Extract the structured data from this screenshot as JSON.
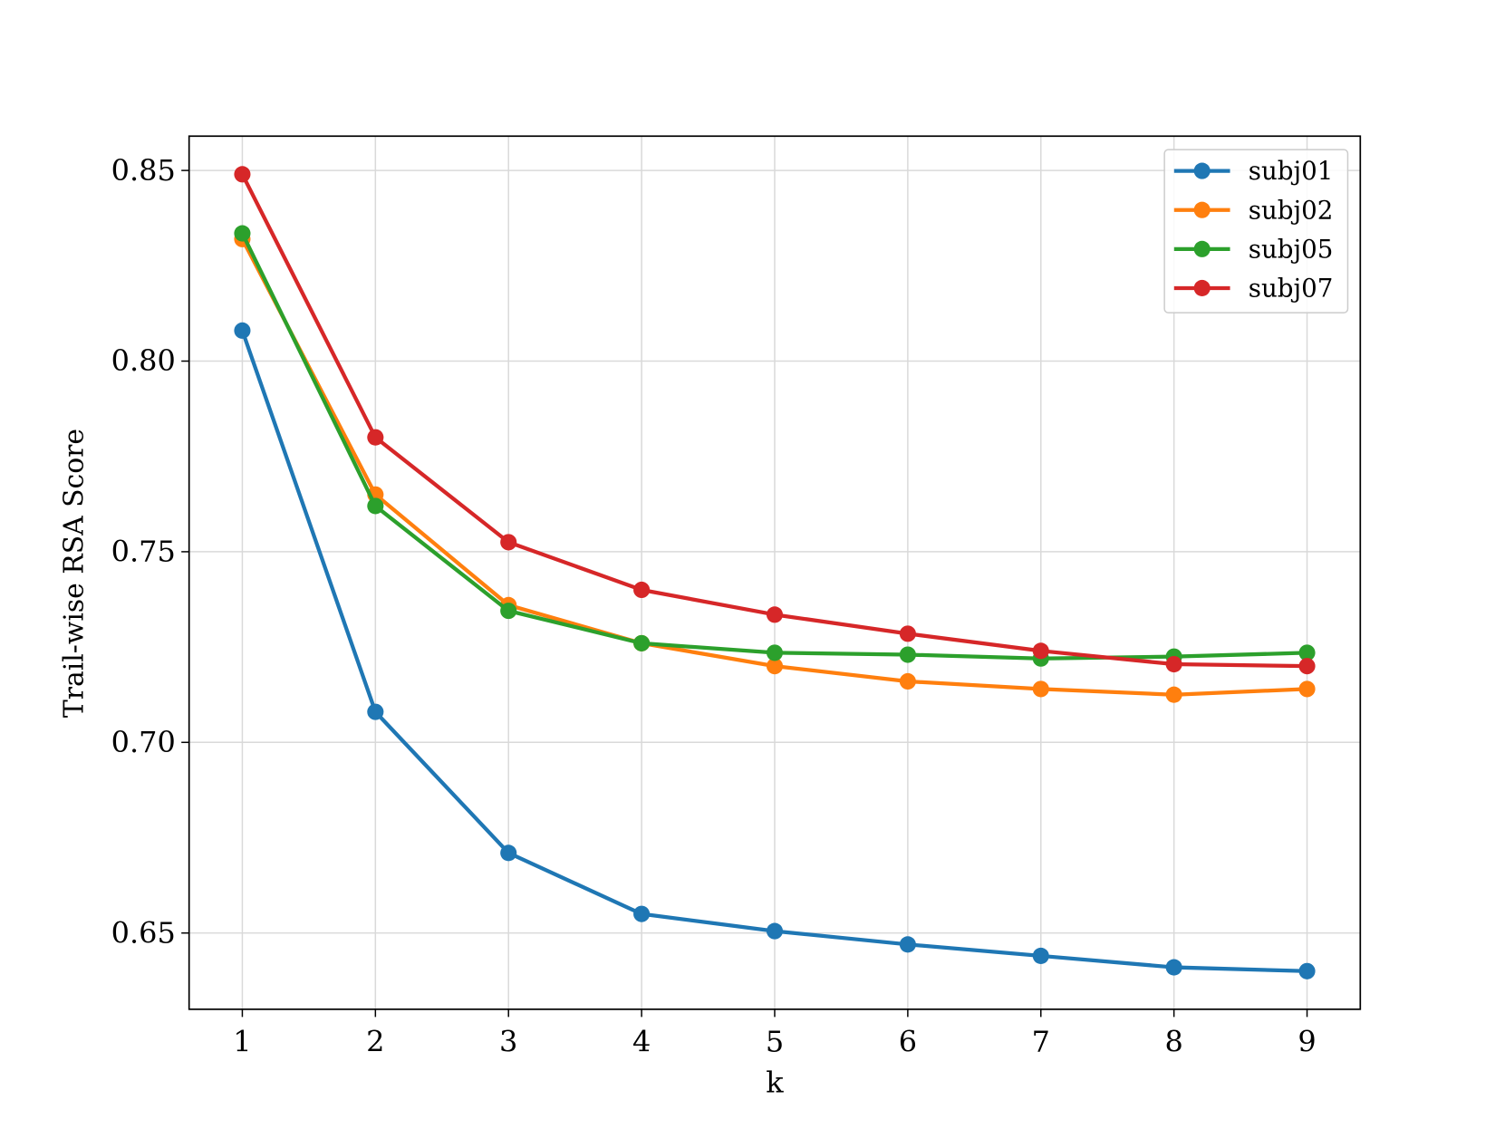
{
  "chart_data": {
    "type": "line",
    "title": "",
    "xlabel": "k",
    "ylabel": "Trail-wise RSA Score",
    "x": [
      1,
      2,
      3,
      4,
      5,
      6,
      7,
      8,
      9
    ],
    "xlim": [
      0.6,
      9.4
    ],
    "ylim": [
      0.63,
      0.859
    ],
    "xticks": [
      "1",
      "2",
      "3",
      "4",
      "5",
      "6",
      "7",
      "8",
      "9"
    ],
    "yticks": [
      "0.65",
      "0.70",
      "0.75",
      "0.80",
      "0.85"
    ],
    "grid": true,
    "legend_position": "top-right",
    "series": [
      {
        "name": "subj01",
        "color": "#1f77b4",
        "values": [
          0.808,
          0.708,
          0.671,
          0.655,
          0.6505,
          0.647,
          0.644,
          0.641,
          0.64
        ]
      },
      {
        "name": "subj02",
        "color": "#ff7f0e",
        "values": [
          0.832,
          0.765,
          0.736,
          0.726,
          0.72,
          0.716,
          0.714,
          0.7125,
          0.714
        ]
      },
      {
        "name": "subj05",
        "color": "#2ca02c",
        "values": [
          0.8335,
          0.762,
          0.7345,
          0.726,
          0.7235,
          0.723,
          0.722,
          0.7225,
          0.7235
        ]
      },
      {
        "name": "subj07",
        "color": "#d62728",
        "values": [
          0.849,
          0.78,
          0.7525,
          0.74,
          0.7335,
          0.7285,
          0.724,
          0.7205,
          0.72
        ]
      }
    ]
  }
}
